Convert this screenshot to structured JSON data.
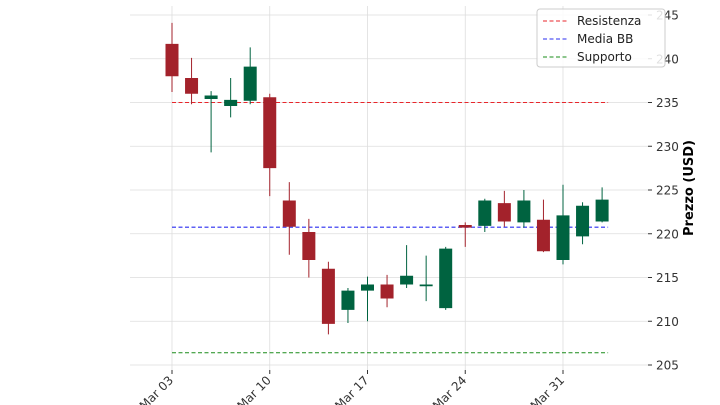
{
  "chart_data": {
    "type": "candlestick",
    "title": "",
    "xlabel": "",
    "ylabel": "Prezzo (USD)",
    "ylim": [
      205,
      245
    ],
    "y_ticks": [
      205,
      210,
      215,
      220,
      225,
      230,
      235,
      240,
      245
    ],
    "y_axis_side": "right",
    "x_tick_labels": [
      "Mar 03",
      "Mar 10",
      "Mar 17",
      "Mar 24",
      "Mar 31"
    ],
    "x_tick_indices": [
      0,
      5,
      10,
      15,
      20
    ],
    "grid": true,
    "legend_position": "top-right",
    "colors": {
      "up": "#006340",
      "down": "#a3222b",
      "resistance": "#e8262b",
      "mean": "#2a2cf0",
      "support": "#1a8c1a",
      "grid": "#dddddd"
    },
    "candles": [
      {
        "date": "Mar 03",
        "open": 241.7,
        "high": 244.1,
        "low": 236.2,
        "close": 238.0
      },
      {
        "date": "Mar 04",
        "open": 237.8,
        "high": 240.1,
        "low": 234.8,
        "close": 236.0
      },
      {
        "date": "Mar 05",
        "open": 235.4,
        "high": 236.3,
        "low": 229.3,
        "close": 235.8
      },
      {
        "date": "Mar 06",
        "open": 234.6,
        "high": 237.8,
        "low": 233.3,
        "close": 235.3
      },
      {
        "date": "Mar 07",
        "open": 235.2,
        "high": 241.3,
        "low": 234.8,
        "close": 239.1
      },
      {
        "date": "Mar 10",
        "open": 235.6,
        "high": 236.0,
        "low": 224.3,
        "close": 227.5
      },
      {
        "date": "Mar 11",
        "open": 223.8,
        "high": 225.9,
        "low": 217.6,
        "close": 220.8
      },
      {
        "date": "Mar 12",
        "open": 220.2,
        "high": 221.7,
        "low": 215.0,
        "close": 217.0
      },
      {
        "date": "Mar 13",
        "open": 216.0,
        "high": 216.8,
        "low": 208.5,
        "close": 209.7
      },
      {
        "date": "Mar 14",
        "open": 211.3,
        "high": 213.8,
        "low": 209.8,
        "close": 213.5
      },
      {
        "date": "Mar 17",
        "open": 213.5,
        "high": 215.1,
        "low": 210.0,
        "close": 214.2
      },
      {
        "date": "Mar 18",
        "open": 214.2,
        "high": 215.3,
        "low": 211.6,
        "close": 212.6
      },
      {
        "date": "Mar 19",
        "open": 214.2,
        "high": 218.7,
        "low": 213.8,
        "close": 215.2
      },
      {
        "date": "Mar 20",
        "open": 214.0,
        "high": 217.5,
        "low": 212.3,
        "close": 214.2
      },
      {
        "date": "Mar 21",
        "open": 211.5,
        "high": 218.5,
        "low": 211.3,
        "close": 218.3
      },
      {
        "date": "Mar 24",
        "open": 221.0,
        "high": 221.3,
        "low": 218.5,
        "close": 220.7
      },
      {
        "date": "Mar 25",
        "open": 220.9,
        "high": 224.0,
        "low": 220.2,
        "close": 223.8
      },
      {
        "date": "Mar 26",
        "open": 223.5,
        "high": 224.9,
        "low": 220.8,
        "close": 221.4
      },
      {
        "date": "Mar 27",
        "open": 221.3,
        "high": 225.0,
        "low": 220.7,
        "close": 223.8
      },
      {
        "date": "Mar 28",
        "open": 221.6,
        "high": 223.9,
        "low": 217.9,
        "close": 218.0
      },
      {
        "date": "Mar 31",
        "open": 217.0,
        "high": 225.6,
        "low": 216.5,
        "close": 222.1
      },
      {
        "date": "Apr 01",
        "open": 219.7,
        "high": 223.6,
        "low": 218.8,
        "close": 223.2
      },
      {
        "date": "Apr 02",
        "open": 221.4,
        "high": 225.3,
        "low": 221.3,
        "close": 223.9
      }
    ],
    "reference_lines": [
      {
        "name": "Resistenza",
        "value": 235.0,
        "color": "#e8262b"
      },
      {
        "name": "Media BB",
        "value": 220.75,
        "color": "#2a2cf0"
      },
      {
        "name": "Supporto",
        "value": 206.4,
        "color": "#1a8c1a"
      }
    ]
  }
}
